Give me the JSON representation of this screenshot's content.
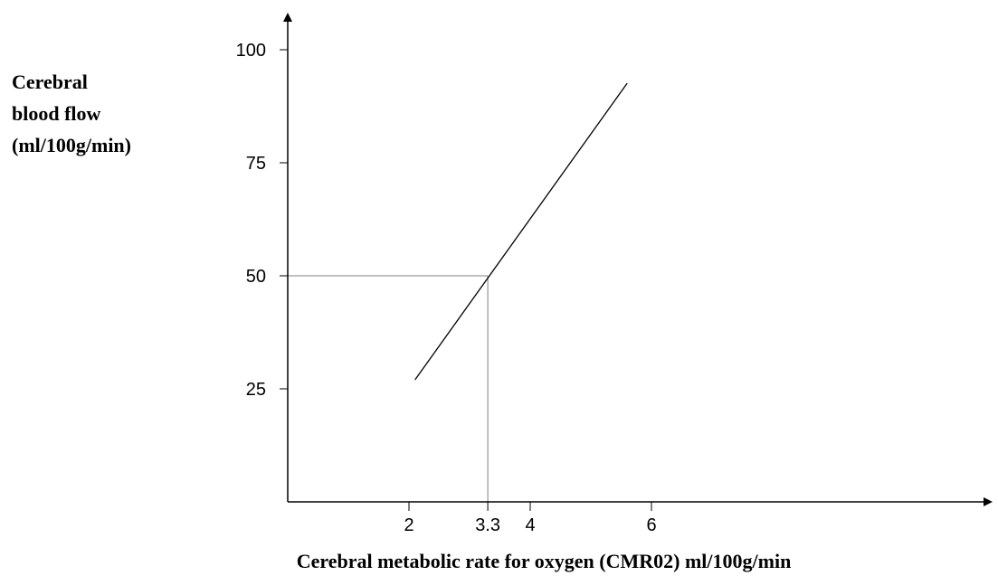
{
  "chart_data": {
    "type": "line",
    "xlabel": "Cerebral metabolic rate for oxygen (CMR02) ml/100g/min",
    "ylabel_lines": [
      "Cerebral",
      "blood flow",
      "(ml/100g/min)"
    ],
    "xlim": [
      0,
      8.9
    ],
    "ylim": [
      0,
      110
    ],
    "x_ticks": [
      {
        "value": 2,
        "label": "2"
      },
      {
        "value": 3.3,
        "label": "3.3"
      },
      {
        "value": 4,
        "label": "4"
      },
      {
        "value": 6,
        "label": "6"
      }
    ],
    "y_ticks": [
      {
        "value": 25,
        "label": "25"
      },
      {
        "value": 50,
        "label": "50"
      },
      {
        "value": 75,
        "label": "75"
      },
      {
        "value": 100,
        "label": "100"
      }
    ],
    "series": [
      {
        "x": [
          2.1,
          5.6
        ],
        "y": [
          27,
          92.6
        ]
      }
    ],
    "reference_point": {
      "x": 3.3,
      "y": 50
    },
    "grid": false,
    "colors": {
      "axis": "#000000",
      "line": "#000000",
      "reference": "#808080"
    }
  }
}
